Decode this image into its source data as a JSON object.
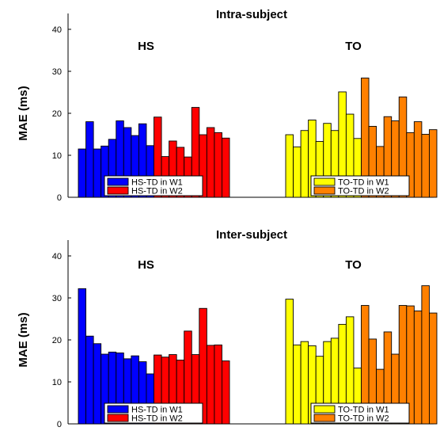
{
  "chart_data": [
    {
      "type": "bar",
      "title": "Intra-subject",
      "ylabel": "MAE (ms)",
      "ylim": [
        0,
        40
      ],
      "yticks": [
        0,
        10,
        20,
        30,
        40
      ],
      "groups": [
        {
          "label": "HS",
          "series": [
            {
              "name": "HS-TD in W1",
              "color": "#0000ff",
              "values": [
                11.5,
                18.0,
                11.5,
                12.2,
                13.8,
                18.2,
                16.6,
                14.7,
                17.5,
                12.3
              ]
            },
            {
              "name": "HS-TD in W2",
              "color": "#ff0000",
              "values": [
                19.1,
                9.7,
                13.4,
                11.9,
                9.6,
                21.4,
                14.9,
                16.6,
                15.4,
                14.1
              ]
            }
          ]
        },
        {
          "label": "TO",
          "series": [
            {
              "name": "TO-TD in W1",
              "color": "#ffff00",
              "values": [
                14.9,
                12.0,
                15.9,
                18.4,
                13.3,
                17.6,
                15.9,
                25.1,
                19.8,
                14.0
              ]
            },
            {
              "name": "TO-TD in W2",
              "color": "#ff8000",
              "values": [
                28.4,
                16.9,
                12.1,
                19.2,
                18.2,
                23.9,
                15.4,
                18.0,
                15.0,
                16.1
              ]
            }
          ]
        }
      ]
    },
    {
      "type": "bar",
      "title": "Inter-subject",
      "ylabel": "MAE (ms)",
      "ylim": [
        0,
        40
      ],
      "yticks": [
        0,
        10,
        20,
        30,
        40
      ],
      "groups": [
        {
          "label": "HS",
          "series": [
            {
              "name": "HS-TD in W1",
              "color": "#0000ff",
              "values": [
                32.2,
                20.9,
                19.1,
                16.6,
                17.1,
                16.9,
                15.5,
                16.2,
                14.8,
                11.9
              ]
            },
            {
              "name": "HS-TD in W2",
              "color": "#ff0000",
              "values": [
                16.4,
                15.9,
                16.5,
                15.2,
                22.1,
                16.5,
                27.5,
                18.7,
                18.8,
                15.0
              ]
            }
          ]
        },
        {
          "label": "TO",
          "series": [
            {
              "name": "TO-TD in W1",
              "color": "#ffff00",
              "values": [
                29.7,
                18.8,
                19.6,
                18.6,
                16.1,
                19.6,
                20.4,
                23.7,
                25.5,
                13.3
              ]
            },
            {
              "name": "TO-TD in W2",
              "color": "#ff8000",
              "values": [
                28.2,
                20.2,
                13.0,
                21.9,
                16.6,
                28.2,
                28.1,
                26.9,
                32.9,
                26.4
              ]
            }
          ]
        }
      ]
    }
  ]
}
